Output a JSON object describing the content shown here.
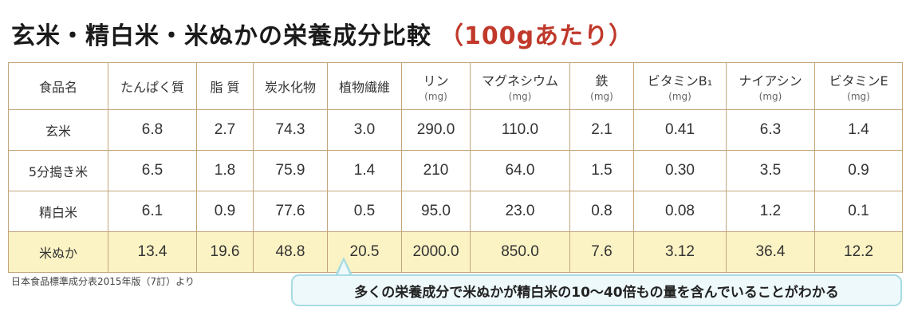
{
  "title": {
    "main": "玄米・精白米・米ぬかの栄養成分比較",
    "sub": "（100gあたり）",
    "sub_color": "#c0392b"
  },
  "table": {
    "headers": [
      {
        "label": "食品名",
        "unit": ""
      },
      {
        "label": "たんぱく質",
        "unit": ""
      },
      {
        "label": "脂 質",
        "unit": ""
      },
      {
        "label": "炭水化物",
        "unit": ""
      },
      {
        "label": "植物繊維",
        "unit": ""
      },
      {
        "label": "リン",
        "unit": "(mg)"
      },
      {
        "label": "マグネシウム",
        "unit": "(mg)"
      },
      {
        "label": "鉄",
        "unit": "(mg)"
      },
      {
        "label": "ビタミンB₁",
        "unit": "(mg)"
      },
      {
        "label": "ナイアシン",
        "unit": "(mg)"
      },
      {
        "label": "ビタミンE",
        "unit": "(mg)"
      }
    ],
    "rows": [
      {
        "name": "玄米",
        "values": [
          "6.8",
          "2.7",
          "74.3",
          "3.0",
          "290.0",
          "110.0",
          "2.1",
          "0.41",
          "6.3",
          "1.4"
        ]
      },
      {
        "name": "5分搗き米",
        "values": [
          "6.5",
          "1.8",
          "75.9",
          "1.4",
          "210",
          "64.0",
          "1.5",
          "0.30",
          "3.5",
          "0.9"
        ]
      },
      {
        "name": "精白米",
        "values": [
          "6.1",
          "0.9",
          "77.6",
          "0.5",
          "95.0",
          "23.0",
          "0.8",
          "0.08",
          "1.2",
          "0.1"
        ]
      },
      {
        "name": "米ぬか",
        "values": [
          "13.4",
          "19.6",
          "48.8",
          "20.5",
          "2000.0",
          "850.0",
          "7.6",
          "3.12",
          "36.4",
          "12.2"
        ]
      }
    ],
    "highlight_row_color": "#fbf3c4",
    "border_color": "#c4a57a"
  },
  "source_note": "日本食品標準成分表2015年版（7訂）より",
  "callout": {
    "text": "多くの栄養成分で米ぬかが精白米の10〜40倍もの量を含んでいることがわかる",
    "border_color": "#a8dbe3",
    "background": "#eef9fb"
  }
}
